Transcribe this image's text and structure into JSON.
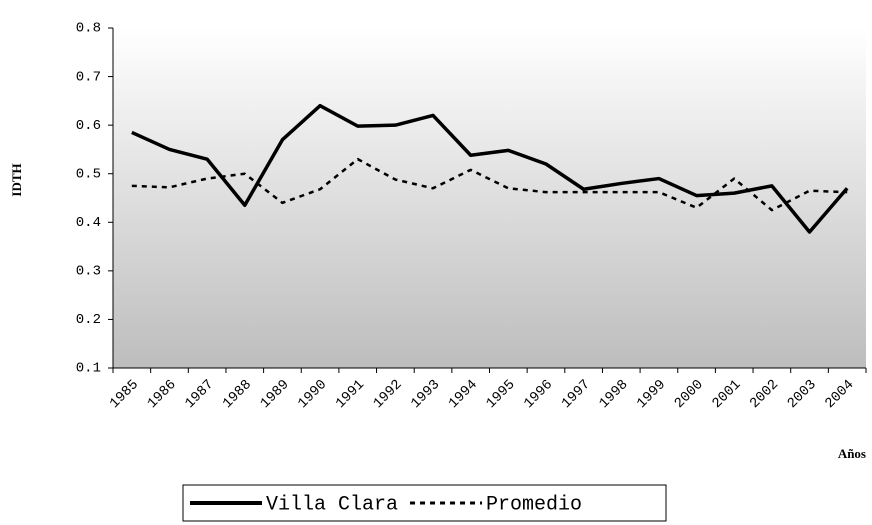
{
  "chart_data": {
    "type": "line",
    "y_label": "IDTH",
    "x_label": "Años",
    "categories": [
      "1985",
      "1986",
      "1987",
      "1988",
      "1989",
      "1990",
      "1991",
      "1992",
      "1993",
      "1994",
      "1995",
      "1996",
      "1997",
      "1998",
      "1999",
      "2000",
      "2001",
      "2002",
      "2003",
      "2004"
    ],
    "series": [
      {
        "name": "Villa Clara",
        "color": "#000000",
        "line_style": "solid",
        "values": [
          0.585,
          0.55,
          0.53,
          0.435,
          0.57,
          0.64,
          0.598,
          0.6,
          0.62,
          0.538,
          0.548,
          0.52,
          0.468,
          0.48,
          0.49,
          0.455,
          0.46,
          0.475,
          0.38,
          0.47
        ]
      },
      {
        "name": "Promedio",
        "color": "#000000",
        "line_style": "dotted",
        "values": [
          0.475,
          0.472,
          0.49,
          0.5,
          0.44,
          0.468,
          0.53,
          0.488,
          0.47,
          0.508,
          0.47,
          0.462,
          0.462,
          0.462,
          0.462,
          0.43,
          0.49,
          0.425,
          0.465,
          0.462
        ]
      }
    ],
    "ylim": [
      0.1,
      0.8
    ],
    "yticks": [
      0.1,
      0.2,
      0.3,
      0.4,
      0.5,
      0.6,
      0.7,
      0.8
    ],
    "legend": "bottom"
  }
}
